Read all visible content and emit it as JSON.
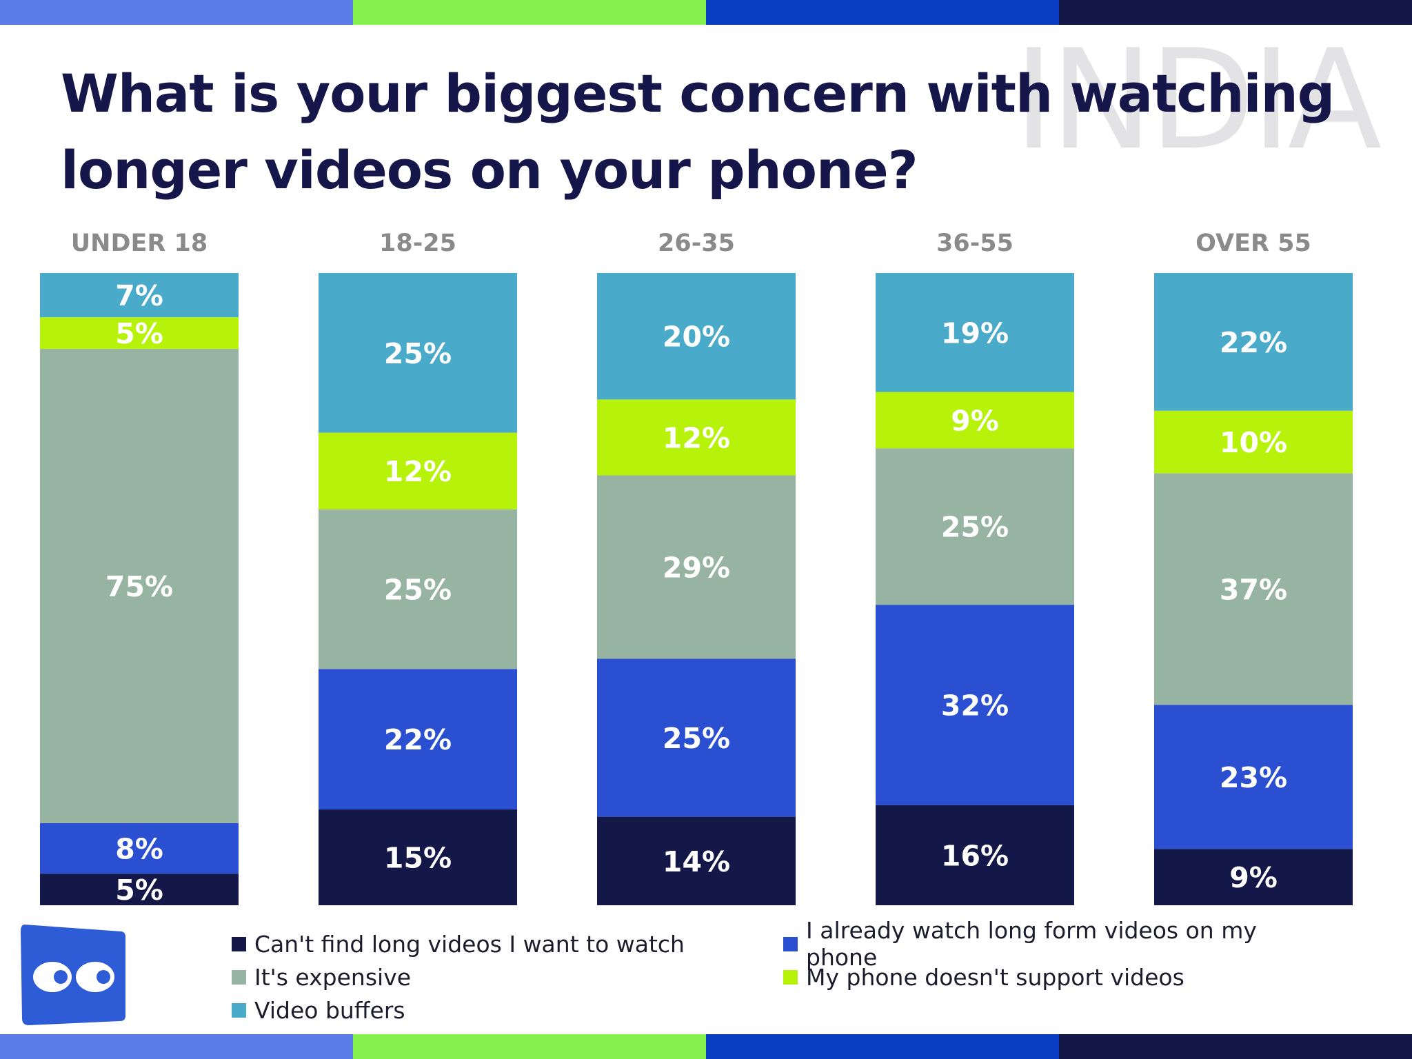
{
  "title": "What is your biggest concern with watching longer videos on your phone?",
  "watermark": "INDIA",
  "colors": {
    "stripes": [
      "#5a7de8",
      "#86f04e",
      "#0a3cc4",
      "#141848"
    ],
    "title": "#15174a",
    "category_label": "#8a8a8a",
    "data_label": "#ffffff",
    "logo_bg": "#2e5bd6"
  },
  "logo": {
    "icon": "eyes-logo-icon"
  },
  "chart_data": {
    "type": "bar",
    "stacked": true,
    "categories": [
      "UNDER 18",
      "18-25",
      "26-35",
      "36-55",
      "OVER 55"
    ],
    "series": [
      {
        "name": "Can't find long videos I want to watch",
        "color": "#141848",
        "values": [
          5,
          15,
          14,
          16,
          9
        ]
      },
      {
        "name": "I already watch long form videos on my phone",
        "color": "#2a4fd0",
        "values": [
          8,
          22,
          25,
          32,
          23
        ]
      },
      {
        "name": "It's expensive",
        "color": "#97b4a3",
        "values": [
          75,
          25,
          29,
          25,
          37
        ]
      },
      {
        "name": "My phone doesn't support videos",
        "color": "#b7f20a",
        "values": [
          5,
          12,
          12,
          9,
          10
        ]
      },
      {
        "name": "Video buffers",
        "color": "#4aaac9",
        "values": [
          7,
          25,
          20,
          19,
          22
        ]
      }
    ],
    "value_suffix": "%",
    "legend_position": "bottom",
    "grid": false
  },
  "legend_order": [
    0,
    1,
    2,
    3,
    4
  ]
}
